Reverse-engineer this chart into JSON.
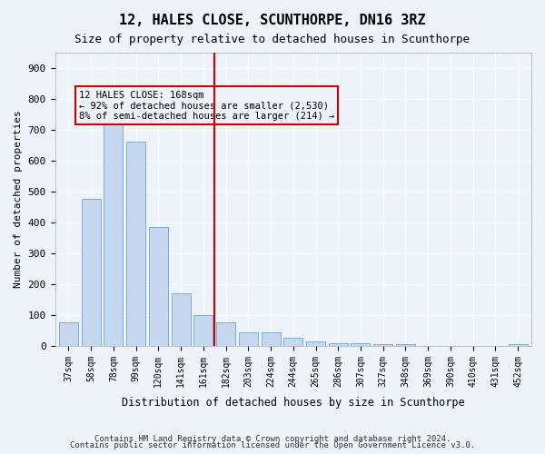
{
  "title": "12, HALES CLOSE, SCUNTHORPE, DN16 3RZ",
  "subtitle": "Size of property relative to detached houses in Scunthorpe",
  "xlabel": "Distribution of detached houses by size in Scunthorpe",
  "ylabel": "Number of detached properties",
  "categories": [
    "37sqm",
    "58sqm",
    "78sqm",
    "99sqm",
    "120sqm",
    "141sqm",
    "161sqm",
    "182sqm",
    "203sqm",
    "224sqm",
    "244sqm",
    "265sqm",
    "286sqm",
    "307sqm",
    "327sqm",
    "348sqm",
    "369sqm",
    "390sqm",
    "410sqm",
    "431sqm",
    "452sqm"
  ],
  "values": [
    75,
    475,
    730,
    660,
    385,
    170,
    100,
    75,
    45,
    45,
    25,
    15,
    10,
    10,
    5,
    5,
    0,
    0,
    0,
    0,
    5
  ],
  "bar_color": "#c5d8f0",
  "bar_edge_color": "#7aafd4",
  "highlight_index": 6,
  "vline_x": 6.5,
  "annotation_title": "12 HALES CLOSE: 168sqm",
  "annotation_line1": "← 92% of detached houses are smaller (2,530)",
  "annotation_line2": "8% of semi-detached houses are larger (214) →",
  "vline_color": "#cc0000",
  "box_color": "#cc0000",
  "ylim": [
    0,
    950
  ],
  "yticks": [
    0,
    100,
    200,
    300,
    400,
    500,
    600,
    700,
    800,
    900
  ],
  "footer1": "Contains HM Land Registry data © Crown copyright and database right 2024.",
  "footer2": "Contains public sector information licensed under the Open Government Licence v3.0.",
  "bg_color": "#eef3fa",
  "grid_color": "#ffffff"
}
